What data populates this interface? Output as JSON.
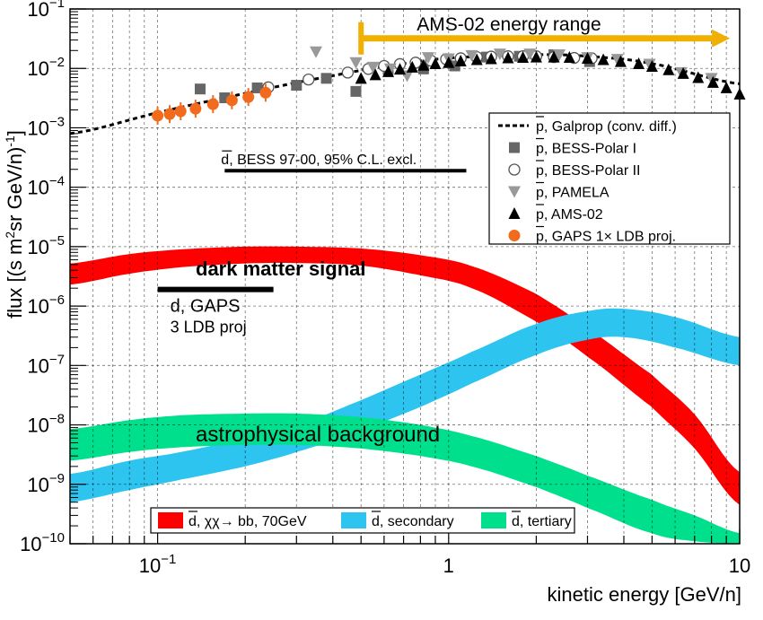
{
  "chart_data": {
    "type": "scatter",
    "scale": {
      "x": "log",
      "y": "log"
    },
    "xlim": [
      0.05,
      10
    ],
    "ylim": [
      1e-10,
      0.1
    ],
    "grid": true,
    "xlabel": "kinetic energy [GeV/n]",
    "ylabel": {
      "pre": "flux [(s m",
      "sup1": "2",
      "mid": "sr GeV/n)",
      "sup2": "-1",
      "post": "]"
    },
    "x_ticks": [
      {
        "value": 0.1,
        "base": "10",
        "exp": "−1"
      },
      {
        "value": 1,
        "base": "1",
        "exp": ""
      },
      {
        "value": 10,
        "base": "10",
        "exp": ""
      }
    ],
    "y_ticks": [
      {
        "value": 0.1,
        "base": "10",
        "exp": "−1"
      },
      {
        "value": 0.01,
        "base": "10",
        "exp": "−2"
      },
      {
        "value": 0.001,
        "base": "10",
        "exp": "−3"
      },
      {
        "value": 0.0001,
        "base": "10",
        "exp": "−4"
      },
      {
        "value": 1e-05,
        "base": "10",
        "exp": "−5"
      },
      {
        "value": 1e-06,
        "base": "10",
        "exp": "−6"
      },
      {
        "value": 1e-07,
        "base": "10",
        "exp": "−7"
      },
      {
        "value": 1e-08,
        "base": "10",
        "exp": "−8"
      },
      {
        "value": 1e-09,
        "base": "10",
        "exp": "−9"
      },
      {
        "value": 1e-10,
        "base": "10",
        "exp": "−10"
      }
    ],
    "bands": [
      {
        "name": "d, χχ→ bb, 70GeV",
        "color": "#ff0000",
        "x": [
          0.05,
          0.08,
          0.12,
          0.2,
          0.3,
          0.5,
          0.8,
          1.2,
          2,
          3,
          5,
          7,
          10
        ],
        "lower": [
          2.3e-06,
          3.5e-06,
          4.5e-06,
          5.2e-06,
          5.3e-06,
          4.8e-06,
          3.3e-06,
          2e-06,
          5.5e-07,
          1.4e-07,
          2e-08,
          4e-09,
          4.5e-10
        ],
        "upper": [
          5.2e-06,
          7.5e-06,
          9e-06,
          1e-05,
          1e-05,
          9.3e-06,
          7.2e-06,
          4.7e-06,
          1.6e-06,
          4.2e-07,
          7e-08,
          1.5e-08,
          1.6e-09
        ]
      },
      {
        "name": "d, secondary",
        "color": "#2ec4f0",
        "x": [
          0.05,
          0.08,
          0.12,
          0.2,
          0.3,
          0.5,
          0.8,
          1.2,
          2,
          3,
          4,
          6,
          10
        ],
        "lower": [
          5e-10,
          8e-10,
          1.2e-09,
          2e-09,
          3.5e-09,
          8e-09,
          2e-08,
          5e-08,
          1.5e-07,
          2.7e-07,
          3e-07,
          2e-07,
          1e-07
        ],
        "upper": [
          1.5e-09,
          2.5e-09,
          3.5e-09,
          6e-09,
          1e-08,
          2.6e-08,
          7e-08,
          1.7e-07,
          5e-07,
          8.2e-07,
          9e-07,
          6.5e-07,
          3e-07
        ]
      },
      {
        "name": "d, tertiary",
        "color": "#00e08c",
        "x": [
          0.05,
          0.08,
          0.12,
          0.2,
          0.3,
          0.5,
          0.8,
          1.2,
          2,
          3,
          5,
          7,
          10
        ],
        "lower": [
          2.5e-09,
          3.5e-09,
          4.2e-09,
          4.6e-09,
          4.6e-09,
          4e-09,
          3e-09,
          2e-09,
          9e-10,
          4e-10,
          1.5e-10,
          1.1e-10,
          1e-10
        ],
        "upper": [
          8.5e-09,
          1.2e-08,
          1.45e-08,
          1.55e-08,
          1.55e-08,
          1.35e-08,
          1e-08,
          6.5e-09,
          3e-09,
          1.4e-09,
          5.5e-10,
          3e-10,
          1.5e-10
        ]
      }
    ],
    "series": [
      {
        "name": "p, Galprop (conv. diff.)",
        "marker": "dashed-line",
        "x": [
          0.05,
          0.1,
          0.2,
          0.4,
          0.7,
          1,
          2,
          3,
          5,
          10
        ],
        "y": [
          0.0008,
          0.0018,
          0.0038,
          0.0075,
          0.012,
          0.015,
          0.017,
          0.016,
          0.012,
          0.0055
        ]
      },
      {
        "name": "p, BESS-Polar I",
        "marker": "square",
        "x": [
          0.14,
          0.17,
          0.22,
          0.3,
          0.38,
          0.48,
          0.62,
          0.82,
          1.05,
          1.35,
          1.75,
          2.3,
          3.05
        ],
        "y": [
          0.0045,
          0.0032,
          0.0047,
          0.0052,
          0.0068,
          0.0041,
          0.0096,
          0.0098,
          0.011,
          0.0155,
          0.016,
          0.017,
          0.013
        ]
      },
      {
        "name": "p, BESS-Polar II",
        "marker": "circle-open",
        "x": [
          0.24,
          0.33,
          0.45,
          0.53,
          0.6,
          0.68,
          0.77,
          0.87,
          0.98,
          1.1,
          1.25,
          1.4,
          1.6,
          1.8,
          2.0,
          2.3,
          2.7,
          3.1
        ],
        "y": [
          0.0048,
          0.0065,
          0.0085,
          0.0098,
          0.011,
          0.0118,
          0.0125,
          0.0135,
          0.0143,
          0.0148,
          0.0155,
          0.0158,
          0.016,
          0.016,
          0.016,
          0.0155,
          0.015,
          0.0148
        ]
      },
      {
        "name": "p, PAMELA",
        "marker": "triangle-down",
        "x": [
          0.35,
          0.48,
          0.55,
          0.63,
          0.72,
          0.85,
          1.0,
          1.2,
          1.5,
          1.9,
          2.4,
          3.0,
          3.8,
          4.9,
          6.3,
          8.0
        ],
        "y": [
          0.019,
          0.0125,
          0.0105,
          0.0098,
          0.0075,
          0.0152,
          0.0145,
          0.0165,
          0.0175,
          0.0175,
          0.017,
          0.0152,
          0.0142,
          0.0118,
          0.0085,
          0.0068
        ]
      },
      {
        "name": "p, AMS-02",
        "marker": "triangle",
        "x": [
          0.5,
          0.56,
          0.62,
          0.68,
          0.75,
          0.82,
          0.9,
          1.0,
          1.1,
          1.25,
          1.4,
          1.6,
          1.8,
          2.0,
          2.3,
          2.6,
          3.0,
          3.4,
          3.9,
          4.5,
          5.0,
          5.7,
          6.4,
          7.2,
          8.1,
          9.0,
          10.0
        ],
        "y": [
          0.0068,
          0.0078,
          0.0088,
          0.0097,
          0.0105,
          0.0113,
          0.012,
          0.0125,
          0.0133,
          0.014,
          0.0145,
          0.015,
          0.0153,
          0.0155,
          0.0155,
          0.0153,
          0.0148,
          0.014,
          0.013,
          0.012,
          0.0108,
          0.0095,
          0.0082,
          0.007,
          0.0058,
          0.0047,
          0.0037
        ]
      },
      {
        "name": "p, GAPS 1× LDB proj.",
        "marker": "circle-orange",
        "x": [
          0.1,
          0.11,
          0.12,
          0.135,
          0.155,
          0.18,
          0.205,
          0.235
        ],
        "y": [
          0.0016,
          0.0017,
          0.0019,
          0.0021,
          0.0025,
          0.0029,
          0.0033,
          0.0039
        ]
      }
    ],
    "annotations": {
      "ams_range": {
        "text": "AMS-02 energy range",
        "x_from": 0.5,
        "x_to": 9.0,
        "y": 0.032,
        "color": "#f0b000"
      },
      "bess_limit": {
        "label": "d, BESS 97-00, 95% C.L. excl.",
        "x_from": 0.17,
        "x_to": 1.15,
        "y": 0.00019
      },
      "gaps_limit": {
        "line1": "d, GAPS",
        "line2": "3 LDB proj",
        "x_from": 0.1,
        "x_to": 0.25,
        "y": 1.9e-06
      },
      "dark_matter": {
        "text": "dark matter signal"
      },
      "astro": {
        "text": "astrophysical background"
      }
    },
    "legend_markers": [
      {
        "name": "p, Galprop (conv. diff.)",
        "marker": "dashed-line"
      },
      {
        "name": "p, BESS-Polar I",
        "marker": "square"
      },
      {
        "name": "p, BESS-Polar II",
        "marker": "circle-open"
      },
      {
        "name": "p, PAMELA",
        "marker": "triangle-down"
      },
      {
        "name": "p, AMS-02",
        "marker": "triangle"
      },
      {
        "name": "p, GAPS 1× LDB proj.",
        "marker": "circle-orange"
      }
    ],
    "legend_bands": [
      {
        "name": "d, χχ→ bb, 70GeV",
        "color": "#ff0000"
      },
      {
        "name": "d, secondary",
        "color": "#2ec4f0"
      },
      {
        "name": "d, tertiary",
        "color": "#00e08c"
      }
    ],
    "marker_colors": {
      "square": "#666666",
      "circle-open": "#555555",
      "triangle-down": "#999999",
      "triangle": "#000000",
      "circle-orange": "#f26a1b",
      "dashed-line": "#000000"
    }
  }
}
